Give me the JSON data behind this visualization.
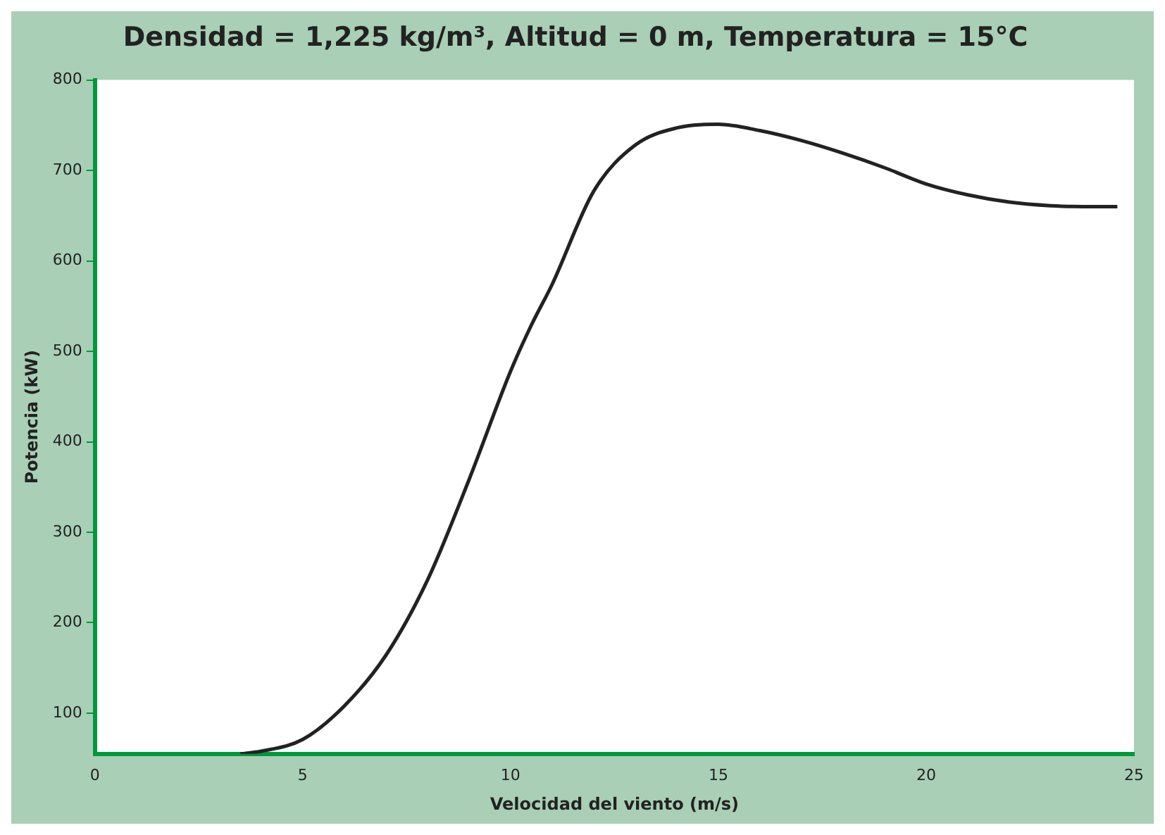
{
  "chart_data": {
    "type": "line",
    "title": "Densidad = 1,225 kg/m³, Altitud = 0 m, Temperatura = 15°C",
    "xlabel": "Velocidad del viento (m/s)",
    "ylabel": "Potencia (kW)",
    "series": [
      {
        "color": "#222222",
        "x": [
          3.5,
          4,
          5,
          6,
          7,
          8,
          9,
          10,
          10.5,
          11,
          12,
          13,
          14,
          15,
          16,
          17,
          18,
          19,
          20,
          21,
          22,
          23,
          24,
          24.6
        ],
        "values": [
          55,
          58,
          71,
          108,
          164,
          247,
          358,
          478,
          529,
          574,
          677,
          728,
          747,
          751,
          744,
          733,
          719,
          703,
          685,
          673,
          665,
          661,
          660,
          660
        ]
      }
    ],
    "xlim": [
      0,
      25
    ],
    "xticks": [
      0,
      5,
      10,
      15,
      20,
      25
    ],
    "ylim": [
      55,
      800
    ],
    "yticks": [
      100,
      200,
      300,
      400,
      500,
      600,
      700,
      800
    ],
    "grid": false,
    "legend": false,
    "marker": "none",
    "line_style": "solid"
  }
}
